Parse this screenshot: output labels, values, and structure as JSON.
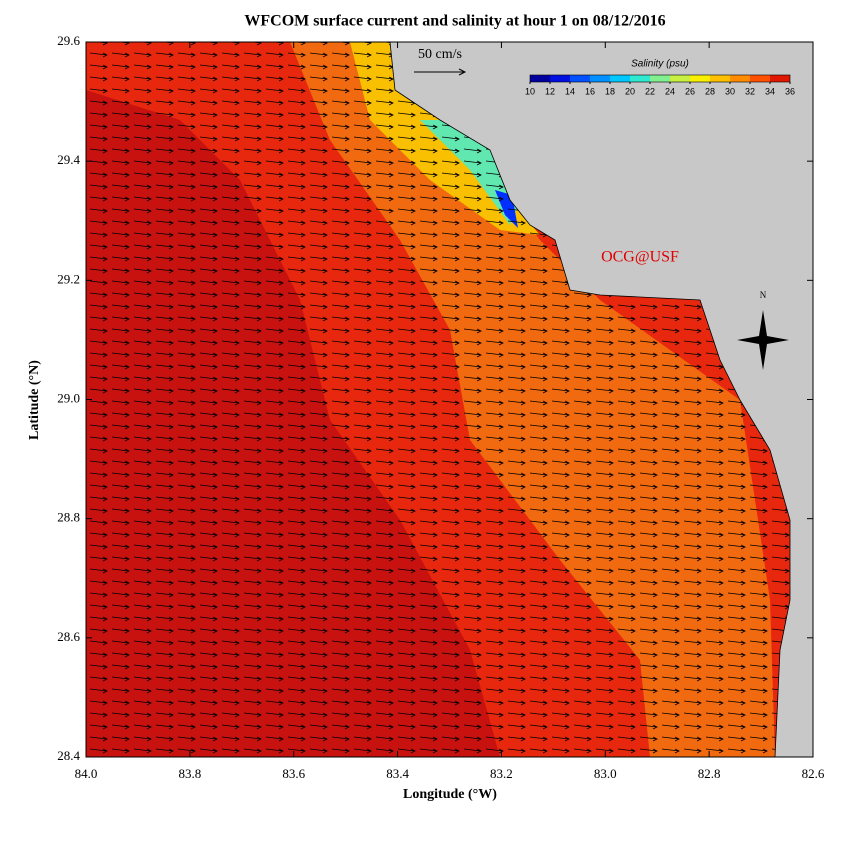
{
  "title": "WFCOM surface current and salinity at hour 1 on 08/12/2016",
  "x_label": "Longitude (°W)",
  "y_label": "Latitude (°N)",
  "xlim": [
    84.0,
    82.6
  ],
  "ylim": [
    28.4,
    29.6
  ],
  "xticks": [
    {
      "value": 84.0,
      "label": "84.0"
    },
    83.8,
    83.6,
    83.4,
    83.2,
    {
      "value": 83.0,
      "label": "83.0"
    },
    82.8,
    82.6
  ],
  "yticks": [
    28.4,
    28.6,
    28.8,
    {
      "value": 29.0,
      "label": "29.0"
    },
    29.2,
    29.4,
    29.6
  ],
  "scale_label": "50 cm/s",
  "credit": "OCG@USF",
  "north_label": "N",
  "colorbar": {
    "title": "Salinity (psu)",
    "lim": [
      10,
      36
    ],
    "ticks": [
      10,
      12,
      14,
      16,
      18,
      20,
      22,
      24,
      26,
      28,
      30,
      32,
      34,
      36
    ],
    "colors": [
      "#0000a0",
      "#0010e0",
      "#0050ff",
      "#0090ff",
      "#00c8ff",
      "#30e8d0",
      "#80f090",
      "#c8f040",
      "#f8f000",
      "#ffc000",
      "#ff8c00",
      "#ff5000",
      "#e01800"
    ]
  }
}
